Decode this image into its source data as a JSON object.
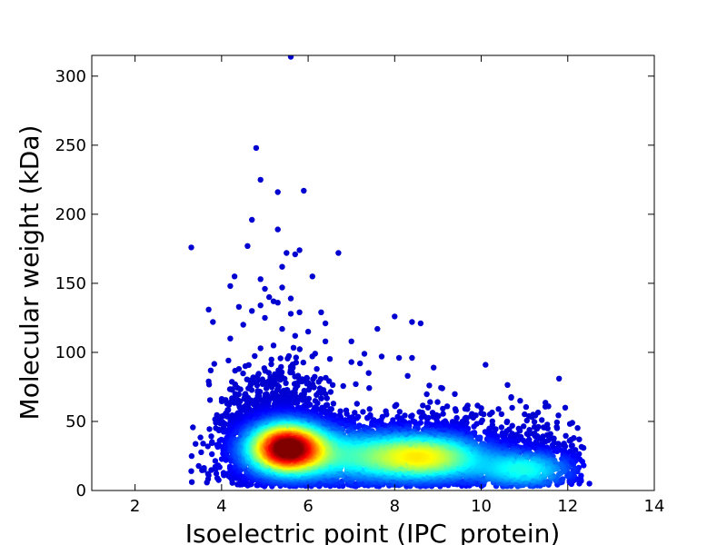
{
  "chart_data": {
    "type": "scatter",
    "title": "",
    "xlabel": "Isoelectric point (IPC_protein)",
    "ylabel": "Molecular weight (kDa)",
    "xlim": [
      1,
      14
    ],
    "ylim": [
      0,
      315
    ],
    "x_ticks": [
      2,
      4,
      6,
      8,
      10,
      12,
      14
    ],
    "y_ticks": [
      0,
      50,
      100,
      150,
      200,
      250,
      300
    ],
    "grid": false,
    "legend": "none",
    "colormap": "jet (point density)",
    "colors": {
      "low_density": "#00008f",
      "mid_density": "#00ffff",
      "high_density": "#ff0000",
      "peak_density": "#800000"
    },
    "density_clusters": [
      {
        "x": 5.5,
        "y": 30,
        "peak": "dark red"
      },
      {
        "x": 8.7,
        "y": 25,
        "peak": "cyan"
      }
    ],
    "points": [
      [
        5.6,
        314
      ],
      [
        4.8,
        248
      ],
      [
        4.9,
        225
      ],
      [
        5.3,
        216
      ],
      [
        5.9,
        217
      ],
      [
        4.7,
        196
      ],
      [
        5.3,
        189
      ],
      [
        3.3,
        176
      ],
      [
        4.6,
        177
      ],
      [
        6.7,
        172
      ],
      [
        5.5,
        172
      ],
      [
        5.8,
        174
      ],
      [
        5.7,
        171
      ],
      [
        5.4,
        162
      ],
      [
        6.1,
        155
      ],
      [
        4.3,
        155
      ],
      [
        4.9,
        153
      ],
      [
        4.2,
        148
      ],
      [
        5.0,
        146
      ],
      [
        5.4,
        147
      ],
      [
        5.1,
        140
      ],
      [
        5.6,
        139
      ],
      [
        4.9,
        134
      ],
      [
        5.2,
        137
      ],
      [
        5.3,
        136
      ],
      [
        3.7,
        131
      ],
      [
        4.4,
        133
      ],
      [
        4.7,
        130
      ],
      [
        5.6,
        128
      ],
      [
        5.8,
        129
      ],
      [
        6.3,
        129
      ],
      [
        5.0,
        125
      ],
      [
        6.4,
        121
      ],
      [
        8.0,
        126
      ],
      [
        3.8,
        122
      ],
      [
        4.5,
        120
      ],
      [
        8.4,
        122
      ],
      [
        8.6,
        121
      ],
      [
        7.6,
        117
      ],
      [
        6.0,
        115
      ],
      [
        5.4,
        117
      ],
      [
        5.7,
        112
      ],
      [
        4.2,
        110
      ],
      [
        7.0,
        108
      ],
      [
        6.4,
        108
      ],
      [
        5.2,
        105
      ],
      [
        4.9,
        103
      ],
      [
        7.3,
        99
      ],
      [
        7.7,
        97
      ],
      [
        8.1,
        96
      ],
      [
        8.4,
        96
      ],
      [
        7.0,
        93
      ],
      [
        7.2,
        92
      ],
      [
        10.1,
        91
      ],
      [
        8.9,
        89
      ],
      [
        6.2,
        88
      ],
      [
        4.4,
        88
      ],
      [
        7.4,
        85
      ],
      [
        8.3,
        83
      ],
      [
        3.7,
        79
      ],
      [
        11.8,
        81
      ],
      [
        7.1,
        77
      ],
      [
        8.8,
        76
      ],
      [
        9.1,
        74
      ],
      [
        6.0,
        78
      ],
      [
        10.4,
        59
      ],
      [
        11.2,
        55
      ],
      [
        11.4,
        51
      ],
      [
        10.9,
        65
      ],
      [
        9.4,
        59
      ],
      [
        10.0,
        56
      ],
      [
        10.6,
        50
      ],
      [
        11.6,
        41
      ],
      [
        11.9,
        33
      ],
      [
        12.1,
        21
      ],
      [
        12.5,
        5
      ],
      [
        3.3,
        14
      ],
      [
        3.7,
        11
      ],
      [
        3.9,
        9
      ],
      [
        4.1,
        22
      ]
    ]
  }
}
